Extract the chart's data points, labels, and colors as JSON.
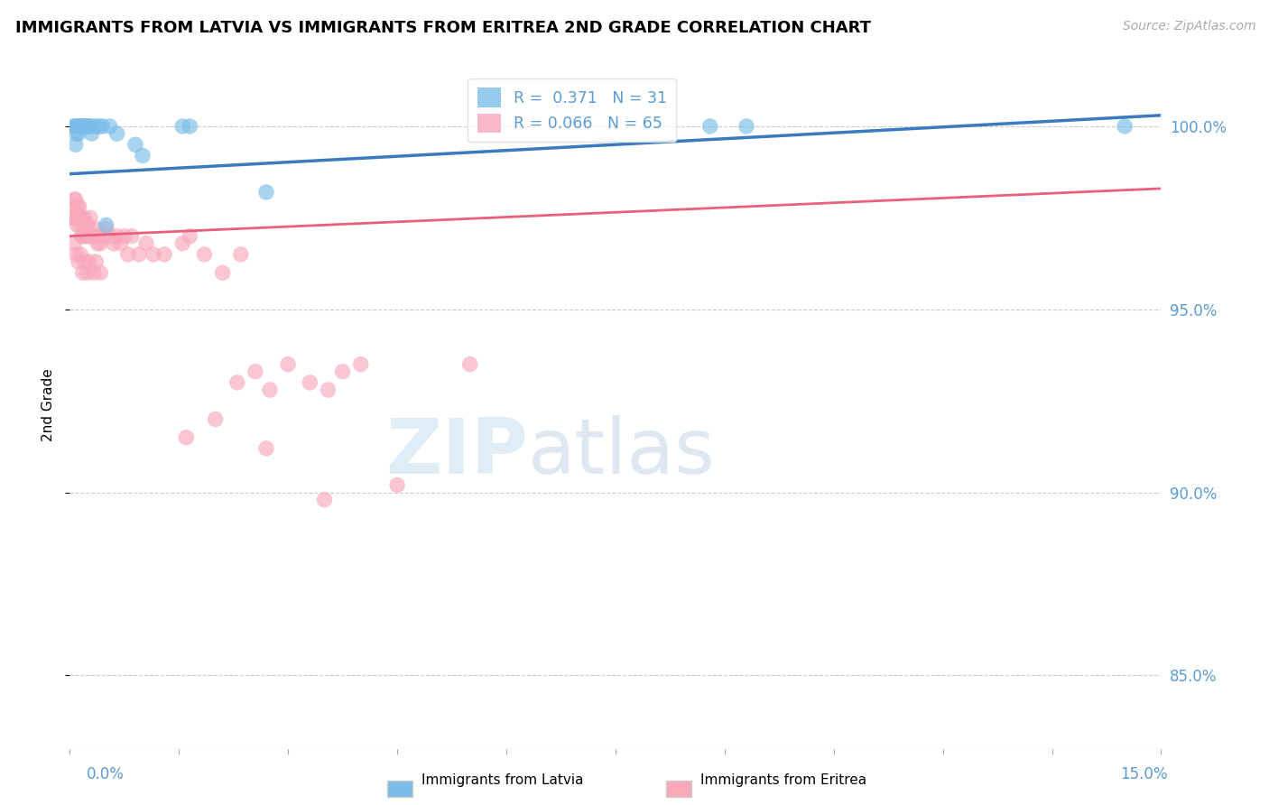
{
  "title": "IMMIGRANTS FROM LATVIA VS IMMIGRANTS FROM ERITREA 2ND GRADE CORRELATION CHART",
  "source": "Source: ZipAtlas.com",
  "ylabel": "2nd Grade",
  "xlim": [
    0.0,
    15.0
  ],
  "ylim": [
    83.0,
    101.8
  ],
  "yticks": [
    85.0,
    90.0,
    95.0,
    100.0
  ],
  "ytick_labels": [
    "85.0%",
    "90.0%",
    "95.0%",
    "100.0%"
  ],
  "latvia_R": 0.371,
  "latvia_N": 31,
  "eritrea_R": 0.066,
  "eritrea_N": 65,
  "latvia_color": "#7bbde8",
  "eritrea_color": "#f9a8bc",
  "latvia_line_color": "#3a7abf",
  "eritrea_line_color": "#e8607a",
  "watermark_zip": "ZIP",
  "watermark_atlas": "atlas",
  "background_color": "#ffffff",
  "grid_color": "#cccccc",
  "axis_label_color": "#5b9bd5",
  "latvia_x": [
    0.05,
    0.07,
    0.09,
    0.1,
    0.11,
    0.13,
    0.15,
    0.17,
    0.18,
    0.2,
    0.22,
    0.25,
    0.27,
    0.3,
    0.35,
    0.4,
    0.45,
    0.55,
    0.65,
    0.9,
    1.0,
    1.55,
    1.65,
    2.7,
    8.8,
    9.3,
    14.5,
    0.08,
    0.12,
    0.28,
    0.5
  ],
  "latvia_y": [
    100.0,
    100.0,
    99.8,
    100.0,
    100.0,
    100.0,
    100.0,
    100.0,
    100.0,
    100.0,
    100.0,
    100.0,
    100.0,
    99.8,
    100.0,
    100.0,
    100.0,
    100.0,
    99.8,
    99.5,
    99.2,
    100.0,
    100.0,
    98.2,
    100.0,
    100.0,
    100.0,
    99.5,
    99.8,
    100.0,
    97.3
  ],
  "eritrea_x": [
    0.03,
    0.05,
    0.06,
    0.07,
    0.08,
    0.09,
    0.1,
    0.11,
    0.12,
    0.13,
    0.14,
    0.15,
    0.16,
    0.17,
    0.18,
    0.19,
    0.2,
    0.22,
    0.24,
    0.25,
    0.27,
    0.28,
    0.3,
    0.32,
    0.35,
    0.38,
    0.4,
    0.42,
    0.45,
    0.5,
    0.55,
    0.6,
    0.65,
    0.7,
    0.75,
    0.8,
    0.85,
    0.95,
    1.05,
    1.15,
    1.3,
    1.55,
    1.65,
    1.85,
    2.1,
    2.35,
    2.55,
    2.75,
    3.0,
    3.3,
    3.55,
    3.75,
    4.0,
    5.5,
    0.06,
    0.09,
    0.12,
    0.15,
    0.18,
    0.21,
    0.24,
    0.27,
    0.33,
    0.36,
    0.42
  ],
  "eritrea_y": [
    97.5,
    97.8,
    98.0,
    97.5,
    98.0,
    97.5,
    97.3,
    97.8,
    97.5,
    97.8,
    97.3,
    97.5,
    97.0,
    97.5,
    97.0,
    97.5,
    97.0,
    97.3,
    97.0,
    97.3,
    97.0,
    97.5,
    97.0,
    97.0,
    97.2,
    96.8,
    97.0,
    96.8,
    97.0,
    97.2,
    97.0,
    96.8,
    97.0,
    96.8,
    97.0,
    96.5,
    97.0,
    96.5,
    96.8,
    96.5,
    96.5,
    96.8,
    97.0,
    96.5,
    96.0,
    96.5,
    93.3,
    92.8,
    93.5,
    93.0,
    92.8,
    93.3,
    93.5,
    93.5,
    96.8,
    96.5,
    96.3,
    96.5,
    96.0,
    96.3,
    96.0,
    96.3,
    96.0,
    96.3,
    96.0
  ],
  "eritrea_outliers_x": [
    1.6,
    2.0,
    2.3,
    2.7,
    3.5,
    4.5
  ],
  "eritrea_outliers_y": [
    91.5,
    92.0,
    93.0,
    91.2,
    89.8,
    90.2
  ],
  "latvia_line_x0": 0.0,
  "latvia_line_y0": 98.7,
  "latvia_line_x1": 15.0,
  "latvia_line_y1": 100.3,
  "eritrea_line_x0": 0.0,
  "eritrea_line_y0": 97.0,
  "eritrea_line_x1": 15.0,
  "eritrea_line_y1": 98.3
}
